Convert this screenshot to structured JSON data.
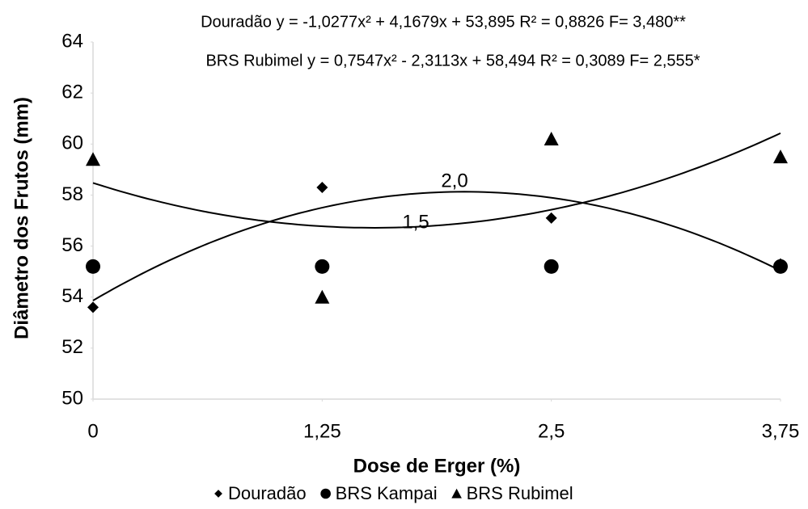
{
  "chart_data": {
    "type": "scatter",
    "x_label": "Dose de Erger (%)",
    "y_label": "Diâmetro dos Frutos (mm)",
    "x": [
      0,
      1.25,
      2.5,
      3.75
    ],
    "series": [
      {
        "name": "Douradão",
        "color": "#000000",
        "marker": "diamond",
        "values": [
          53.6,
          58.3,
          57.1,
          55.3
        ],
        "trendline": "polynomial"
      },
      {
        "name": "BRS Kampai",
        "color": "#000000",
        "marker": "circle",
        "values": [
          55.2,
          55.2,
          55.2,
          55.2
        ]
      },
      {
        "name": "BRS Rubimel",
        "color": "#000000",
        "marker": "triangle",
        "values": [
          59.4,
          54.0,
          60.2,
          59.5
        ],
        "trendline": "polynomial"
      }
    ],
    "annotations": [
      "Douradão y = -1,0277x² + 4,1679x + 53,895 R² = 0,8826 F= 3,480**",
      "BRS Rubimel y = 0,7547x² - 2,3113x + 58,494 R² = 0,3089 F= 2,555*",
      "2,0",
      "1,5"
    ],
    "xlim": [
      0,
      3.75
    ],
    "xticks": [
      0,
      {
        "value": 1.25,
        "label": "1,25"
      },
      {
        "value": 2.5,
        "label": "2,5"
      },
      {
        "value": 3.75,
        "label": "3,75"
      }
    ],
    "ylim": [
      50,
      64
    ],
    "yticks": [
      50,
      52,
      54,
      56,
      58,
      60,
      62,
      64
    ],
    "grid": false,
    "legend": "bottom"
  }
}
